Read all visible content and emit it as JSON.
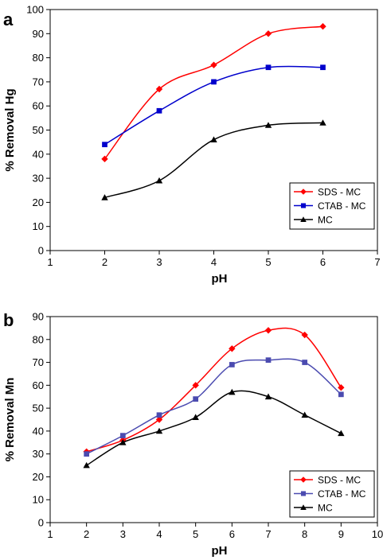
{
  "chart_data": [
    {
      "panel_label": "a",
      "type": "line",
      "xlabel": "pH",
      "ylabel": "% Removal Hg",
      "xlim": [
        1,
        7
      ],
      "ylim": [
        0,
        100
      ],
      "x_ticks": [
        1,
        2,
        3,
        4,
        5,
        6,
        7
      ],
      "y_ticks": [
        0,
        10,
        20,
        30,
        40,
        50,
        60,
        70,
        80,
        90,
        100
      ],
      "grid": false,
      "legend_position": "bottom-right",
      "series": [
        {
          "name": "SDS - MC",
          "color": "#ff0000",
          "marker": "diamond",
          "x": [
            2,
            3,
            4,
            5,
            6
          ],
          "y": [
            38,
            67,
            77,
            90,
            93
          ]
        },
        {
          "name": "CTAB - MC",
          "color": "#0000cc",
          "marker": "square",
          "x": [
            2,
            3,
            4,
            5,
            6
          ],
          "y": [
            44,
            58,
            70,
            76,
            76
          ]
        },
        {
          "name": "MC",
          "color": "#000000",
          "marker": "triangle",
          "x": [
            2,
            3,
            4,
            5,
            6
          ],
          "y": [
            22,
            29,
            46,
            52,
            53
          ]
        }
      ]
    },
    {
      "panel_label": "b",
      "type": "line",
      "xlabel": "pH",
      "ylabel": "% Removal Mn",
      "xlim": [
        1,
        10
      ],
      "ylim": [
        0,
        90
      ],
      "x_ticks": [
        1,
        2,
        3,
        4,
        5,
        6,
        7,
        8,
        9,
        10
      ],
      "y_ticks": [
        0,
        10,
        20,
        30,
        40,
        50,
        60,
        70,
        80,
        90
      ],
      "grid": false,
      "legend_position": "bottom-right",
      "series": [
        {
          "name": "SDS - MC",
          "color": "#ff0000",
          "marker": "diamond",
          "x": [
            2,
            3,
            4,
            5,
            6,
            7,
            8,
            9
          ],
          "y": [
            31,
            36,
            45,
            60,
            76,
            84,
            82,
            59
          ]
        },
        {
          "name": "CTAB - MC",
          "color": "#4b4bb0",
          "marker": "square",
          "x": [
            2,
            3,
            4,
            5,
            6,
            7,
            8,
            9
          ],
          "y": [
            30,
            38,
            47,
            54,
            69,
            71,
            70,
            56
          ]
        },
        {
          "name": "MC",
          "color": "#000000",
          "marker": "triangle",
          "x": [
            2,
            3,
            4,
            5,
            6,
            7,
            8,
            9
          ],
          "y": [
            25,
            35,
            40,
            46,
            57,
            55,
            47,
            39
          ]
        }
      ]
    }
  ]
}
